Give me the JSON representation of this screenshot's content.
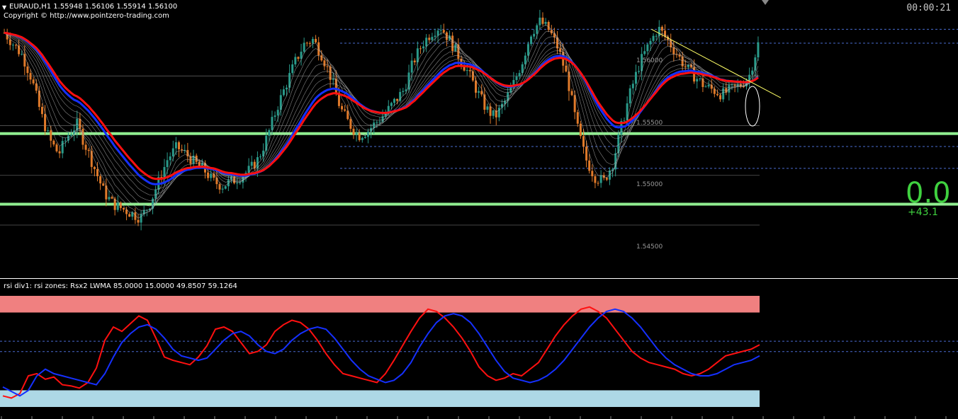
{
  "header": {
    "title": "EURAUD,H1  1.55948 1.56106 1.55914 1.56100",
    "copyright": "Copyright © http://www.pointzero-trading.com",
    "timer": "00:00:21"
  },
  "panel": {
    "value": "0.0",
    "change": "+43.1"
  },
  "subwindow": {
    "title": "rsi div1: rsi zones: Rsx2 LWMA 85.0000 15.0000 49.8507 59.1264"
  },
  "colors": {
    "background": "#000000",
    "bull": "#2a9a8a",
    "bear": "#e07a2a",
    "ma_red": "#ff1010",
    "ma_blue": "#1530ff",
    "support": "#90ee90",
    "overbought_zone": "#f08080",
    "oversold_zone": "#add8e6",
    "trendline": "#ffff66"
  },
  "chart_data": [
    {
      "type": "candlestick",
      "symbol": "EURAUD",
      "timeframe": "H1",
      "title": "EURAUD,H1  1.55948 1.56106 1.55914 1.56100",
      "price_labels": [
        "1.56000",
        "1.55500",
        "1.55000",
        "1.54500"
      ],
      "price_levels": [
        1.56,
        1.555,
        1.55,
        1.545
      ],
      "ylim": [
        1.5398,
        1.5675
      ],
      "last_close": 1.561,
      "support_levels": [
        1.5542,
        1.5471
      ],
      "key_dashed_levels": [
        1.5647,
        1.5633,
        1.5529,
        1.5507
      ],
      "trendline": [
        [
          0.68,
          1.5647
        ],
        [
          0.815,
          1.5578
        ]
      ],
      "candles_shape": [
        0.95,
        0.9,
        0.85,
        0.75,
        0.6,
        0.48,
        0.42,
        0.5,
        0.55,
        0.45,
        0.35,
        0.25,
        0.2,
        0.18,
        0.16,
        0.14,
        0.2,
        0.3,
        0.4,
        0.45,
        0.42,
        0.38,
        0.35,
        0.3,
        0.28,
        0.3,
        0.32,
        0.35,
        0.4,
        0.5,
        0.62,
        0.72,
        0.82,
        0.9,
        0.92,
        0.85,
        0.75,
        0.62,
        0.55,
        0.5,
        0.52,
        0.56,
        0.6,
        0.65,
        0.7,
        0.82,
        0.9,
        0.95,
        0.98,
        0.92,
        0.85,
        0.78,
        0.7,
        0.62,
        0.58,
        0.64,
        0.72,
        0.82,
        0.95,
        1.0,
        0.96,
        0.88,
        0.75,
        0.55,
        0.4,
        0.32,
        0.3,
        0.38,
        0.55,
        0.7,
        0.82,
        0.9,
        0.97,
        0.92,
        0.86,
        0.8,
        0.76,
        0.72,
        0.7,
        0.68,
        0.7,
        0.72,
        0.76,
        0.9
      ]
    },
    {
      "type": "line",
      "title": "rsi div1: rsi zones: Rsx2 LWMA 85.0000 15.0000 49.8507 59.1264",
      "levels": [
        85.0,
        15.0
      ],
      "values_shown": [
        49.8507,
        59.1264
      ],
      "ylim": [
        0,
        100
      ],
      "series": [
        {
          "values": [
            10,
            8,
            12,
            28,
            30,
            25,
            27,
            20,
            19,
            17,
            22,
            35,
            60,
            72,
            68,
            75,
            82,
            78,
            62,
            45,
            42,
            40,
            38,
            45,
            55,
            70,
            72,
            68,
            58,
            48,
            50,
            56,
            68,
            74,
            78,
            76,
            70,
            60,
            48,
            38,
            30,
            28,
            26,
            24,
            22,
            30,
            42,
            55,
            68,
            80,
            88,
            86,
            80,
            72,
            62,
            50,
            36,
            28,
            24,
            26,
            30,
            28,
            34,
            40,
            52,
            64,
            74,
            82,
            88,
            90,
            86,
            80,
            70,
            60,
            50,
            44,
            40,
            38,
            36,
            34,
            30,
            28,
            30,
            34,
            40,
            46,
            48,
            50,
            52,
            56
          ]
        },
        {
          "values": [
            18,
            14,
            10,
            15,
            28,
            34,
            30,
            28,
            26,
            24,
            22,
            20,
            30,
            45,
            58,
            66,
            72,
            74,
            70,
            62,
            52,
            46,
            44,
            42,
            44,
            52,
            60,
            66,
            68,
            64,
            56,
            50,
            48,
            52,
            60,
            66,
            70,
            72,
            70,
            62,
            52,
            42,
            34,
            28,
            25,
            22,
            24,
            30,
            40,
            54,
            66,
            76,
            82,
            84,
            82,
            76,
            66,
            54,
            42,
            32,
            26,
            24,
            22,
            24,
            28,
            34,
            42,
            52,
            62,
            72,
            80,
            86,
            88,
            86,
            80,
            72,
            62,
            52,
            44,
            38,
            34,
            30,
            28,
            28,
            30,
            34,
            38,
            40,
            42,
            46
          ]
        }
      ]
    }
  ]
}
